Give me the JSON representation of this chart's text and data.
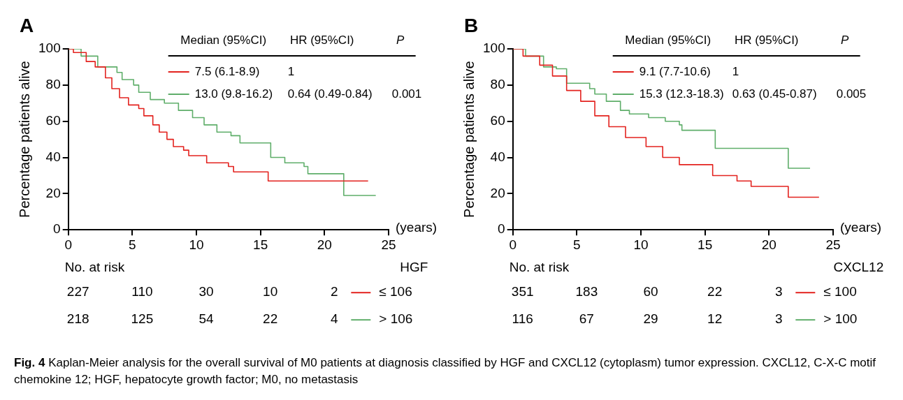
{
  "chart_data": [
    {
      "type": "step",
      "title": "A",
      "xlabel": "(years)",
      "ylabel": "Percentage patients alive",
      "legend_title": "HGF",
      "legend": "bottom right",
      "marker": "none",
      "grid": false,
      "xlim": [
        0,
        25
      ],
      "xticks": [
        0,
        5,
        10,
        15,
        20,
        25
      ],
      "ylim": [
        0,
        100
      ],
      "yticks": [
        0,
        20,
        40,
        60,
        80,
        100
      ],
      "series": [
        {
          "name": "≤ 106",
          "color": "#e3231f",
          "x": [
            0,
            0.4,
            1.4,
            2.1,
            2.9,
            3.4,
            4.0,
            4.7,
            5.5,
            5.9,
            6.6,
            7.1,
            7.7,
            8.2,
            9.0,
            9.4,
            10.8,
            12.5,
            12.9,
            15.6,
            23.4
          ],
          "values": [
            100,
            98,
            93,
            90,
            84,
            78,
            73,
            69,
            67,
            63,
            58,
            54,
            50,
            46,
            44,
            41,
            37,
            35,
            32,
            27,
            27
          ]
        },
        {
          "name": "> 106",
          "color": "#5fae6a",
          "x": [
            0,
            1.0,
            2.3,
            3.8,
            4.2,
            5.1,
            5.5,
            6.4,
            7.5,
            8.6,
            9.7,
            10.6,
            11.6,
            12.7,
            13.4,
            15.8,
            16.9,
            18.4,
            18.7,
            21.5,
            24.0
          ],
          "values": [
            100,
            96,
            90,
            87,
            83,
            80,
            76,
            72,
            70,
            66,
            62,
            58,
            54,
            52,
            48,
            40,
            37,
            35,
            31,
            19,
            19
          ]
        }
      ],
      "annotations": [
        "Median (95%CI)",
        "HR (95%CI)",
        "P",
        "7.5 (6.1-8.9)",
        "1",
        "13.0 (9.8-16.2)",
        "0.64 (0.49-0.84)",
        "0.001",
        "No. at risk",
        "227",
        "110",
        "30",
        "10",
        "2",
        "218",
        "125",
        "54",
        "22",
        "4"
      ]
    },
    {
      "type": "step",
      "title": "B",
      "xlabel": "(years)",
      "ylabel": "Percentage patients alive",
      "legend_title": "CXCL12",
      "legend": "bottom right",
      "marker": "none",
      "grid": false,
      "xlim": [
        0,
        25
      ],
      "xticks": [
        0,
        5,
        10,
        15,
        20,
        25
      ],
      "ylim": [
        0,
        100
      ],
      "yticks": [
        0,
        20,
        40,
        60,
        80,
        100
      ],
      "series": [
        {
          "name": "≤ 100",
          "color": "#e3231f",
          "x": [
            0,
            0.8,
            2.1,
            3.1,
            4.2,
            5.3,
            6.4,
            7.5,
            8.8,
            10.4,
            11.7,
            13.0,
            15.6,
            17.5,
            18.6,
            21.5,
            23.9
          ],
          "values": [
            100,
            96,
            91,
            85,
            77,
            71,
            63,
            57,
            51,
            46,
            40,
            36,
            30,
            27,
            24,
            18,
            18
          ]
        },
        {
          "name": "> 100",
          "color": "#5fae6a",
          "x": [
            0,
            1.0,
            2.4,
            3.4,
            4.2,
            6.0,
            6.4,
            7.3,
            8.4,
            9.1,
            10.6,
            11.9,
            13.0,
            13.2,
            15.8,
            21.5,
            23.2
          ],
          "values": [
            100,
            96,
            90,
            89,
            81,
            78,
            75,
            71,
            66,
            64,
            62,
            60,
            58,
            55,
            45,
            34,
            34
          ]
        }
      ],
      "annotations": [
        "Median (95%CI)",
        "HR (95%CI)",
        "P",
        "9.1 (7.7-10.6)",
        "1",
        "15.3 (12.3-18.3)",
        "0.63 (0.45-0.87)",
        "0.005",
        "No. at risk",
        "351",
        "183",
        "60",
        "22",
        "3",
        "116",
        "67",
        "29",
        "12",
        "3",
        "Fig. 4",
        "Kaplan-Meier analysis for the overall survival of M0 patients at diagnosis classified by HGF and CXCL12 (cytoplasm) tumor expression. CXCL12, C-X-C motif chemokine 12; HGF, hepatocyte growth factor; M0, no metastasis"
      ]
    }
  ]
}
